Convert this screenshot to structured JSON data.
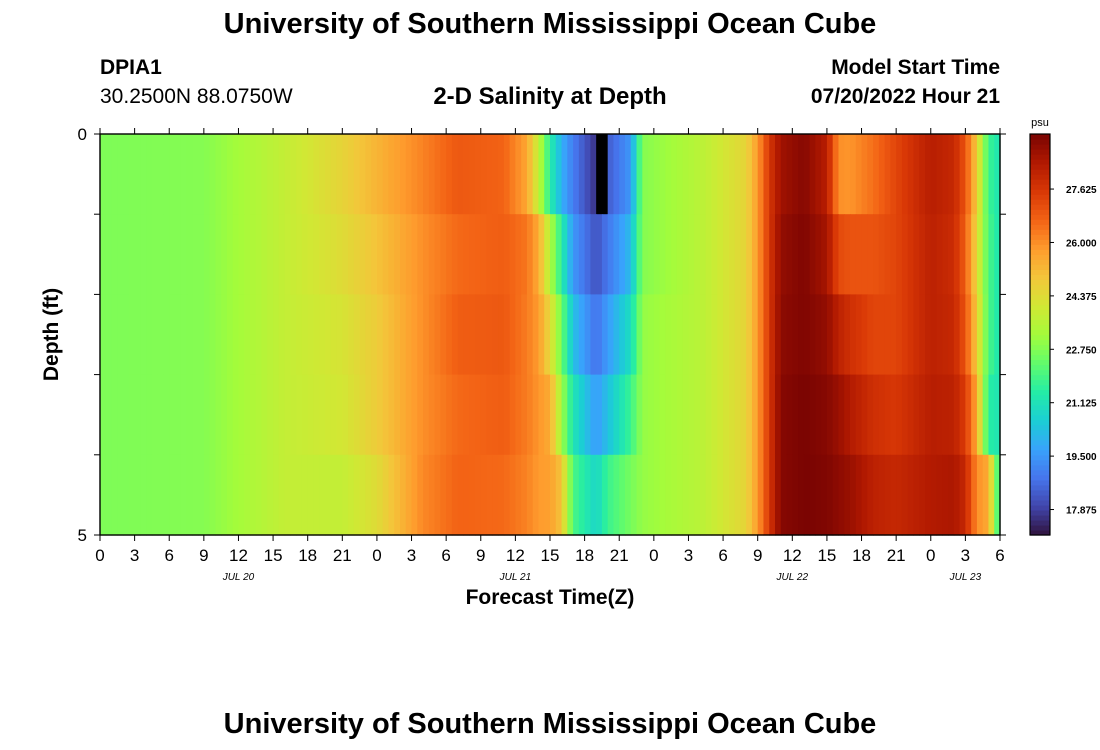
{
  "header": {
    "title": "University of Southern Mississippi Ocean Cube",
    "station": "DPIA1",
    "coords": "30.2500N  88.0750W",
    "subtitle": "2-D Salinity at Depth",
    "model_start_label": "Model Start Time",
    "model_start_value": "07/20/2022 Hour 21"
  },
  "footer": {
    "title": "University of Southern Mississippi Ocean Cube"
  },
  "chart_data": {
    "type": "heatmap",
    "title": "2-D Salinity at Depth",
    "xlabel": "Forecast Time(Z)",
    "ylabel": "Depth (ft)",
    "x_hours": {
      "start": 0,
      "end": 78,
      "step": 1
    },
    "x_tick_labels": [
      "0",
      "3",
      "6",
      "9",
      "12",
      "15",
      "18",
      "21",
      "0",
      "3",
      "6",
      "9",
      "12",
      "15",
      "18",
      "21",
      "0",
      "3",
      "6",
      "9",
      "12",
      "15",
      "18",
      "21",
      "0",
      "3",
      "6"
    ],
    "date_labels": [
      {
        "label": "JUL 20",
        "hour": 12
      },
      {
        "label": "JUL 21",
        "hour": 36
      },
      {
        "label": "JUL 22",
        "hour": 60
      },
      {
        "label": "JUL 23",
        "hour": 75
      }
    ],
    "y_tick_labels": [
      "0",
      "5"
    ],
    "ylim": [
      5,
      0
    ],
    "depth_layers": 5,
    "colorbar": {
      "unit": "psu",
      "min": 17.1,
      "max": 29.3,
      "tick_values": [
        27.625,
        26.0,
        24.375,
        22.75,
        21.125,
        19.5,
        17.875
      ],
      "tick_labels": [
        "27.625",
        "26.000",
        "24.375",
        "22.750",
        "21.125",
        "19.500",
        "17.875"
      ],
      "colors": [
        "#30123b",
        "#4145ab",
        "#4675ed",
        "#39a2fc",
        "#1bcfd4",
        "#24eca6",
        "#61fc6c",
        "#a4fc3b",
        "#d1e834",
        "#f3c63a",
        "#fe9b2d",
        "#f36315",
        "#d93806",
        "#b11901",
        "#7a0402"
      ]
    },
    "profile_note": "salinity psu by forecast hour (rows: depth layers 0-1,1-2,2-3,3-4,4-5 ft)",
    "profile_anchors": [
      {
        "hour": 0,
        "values": [
          22.7,
          22.7,
          22.7,
          22.7,
          22.7
        ]
      },
      {
        "hour": 9,
        "values": [
          22.8,
          22.8,
          22.8,
          22.8,
          22.8
        ]
      },
      {
        "hour": 16,
        "values": [
          23.8,
          23.8,
          23.8,
          23.8,
          23.8
        ]
      },
      {
        "hour": 21,
        "values": [
          24.6,
          24.4,
          24.2,
          24.1,
          23.8
        ]
      },
      {
        "hour": 24,
        "values": [
          25.3,
          25.0,
          24.8,
          24.8,
          24.4
        ]
      },
      {
        "hour": 28,
        "values": [
          26.2,
          26.0,
          26.0,
          26.0,
          26.1
        ]
      },
      {
        "hour": 31,
        "values": [
          26.9,
          26.6,
          26.8,
          26.6,
          26.7
        ]
      },
      {
        "hour": 35,
        "values": [
          26.7,
          26.8,
          26.9,
          26.8,
          26.6
        ]
      },
      {
        "hour": 37,
        "values": [
          25.6,
          26.4,
          26.3,
          26.3,
          26.2
        ]
      },
      {
        "hour": 38,
        "values": [
          23.8,
          25.5,
          25.8,
          25.9,
          25.8
        ]
      },
      {
        "hour": 39,
        "values": [
          21.5,
          23.5,
          24.5,
          25.5,
          25.7
        ]
      },
      {
        "hour": 40,
        "values": [
          20.0,
          21.5,
          22.5,
          23.2,
          25.0
        ]
      },
      {
        "hour": 41,
        "values": [
          19.0,
          19.5,
          20.3,
          21.2,
          22.0
        ]
      },
      {
        "hour": 43,
        "values": [
          17.6,
          18.2,
          18.8,
          19.6,
          20.8
        ]
      },
      {
        "hour": 44,
        "values": [
          18.4,
          18.9,
          19.6,
          20.3,
          21.8
        ]
      },
      {
        "hour": 46,
        "values": [
          19.5,
          20.2,
          21.0,
          21.8,
          22.6
        ]
      },
      {
        "hour": 47,
        "values": [
          22.8,
          22.8,
          23.0,
          23.0,
          23.0
        ]
      },
      {
        "hour": 52,
        "values": [
          23.6,
          23.6,
          23.6,
          23.6,
          23.6
        ]
      },
      {
        "hour": 56,
        "values": [
          24.6,
          24.6,
          24.6,
          24.6,
          24.6
        ]
      },
      {
        "hour": 57,
        "values": [
          25.8,
          25.8,
          25.8,
          25.8,
          25.8
        ]
      },
      {
        "hour": 58,
        "values": [
          27.6,
          27.6,
          27.6,
          27.6,
          27.6
        ]
      },
      {
        "hour": 59,
        "values": [
          28.7,
          28.9,
          29.0,
          29.1,
          29.1
        ]
      },
      {
        "hour": 61,
        "values": [
          29.1,
          29.2,
          29.2,
          29.3,
          29.3
        ]
      },
      {
        "hour": 63,
        "values": [
          28.3,
          28.6,
          28.9,
          29.1,
          29.2
        ]
      },
      {
        "hour": 64,
        "values": [
          26.0,
          27.2,
          28.2,
          28.8,
          29.0
        ]
      },
      {
        "hour": 65,
        "values": [
          25.9,
          27.0,
          27.8,
          28.4,
          28.8
        ]
      },
      {
        "hour": 67,
        "values": [
          26.5,
          27.0,
          27.3,
          27.8,
          28.2
        ]
      },
      {
        "hour": 69,
        "values": [
          27.3,
          27.3,
          27.3,
          27.6,
          28.0
        ]
      },
      {
        "hour": 72,
        "values": [
          28.3,
          28.2,
          28.2,
          28.3,
          28.4
        ]
      },
      {
        "hour": 74,
        "values": [
          28.0,
          27.9,
          28.0,
          28.2,
          28.5
        ]
      },
      {
        "hour": 75,
        "values": [
          27.0,
          26.8,
          27.0,
          27.5,
          28.0
        ]
      },
      {
        "hour": 76,
        "values": [
          24.8,
          24.5,
          24.8,
          25.5,
          26.0
        ]
      },
      {
        "hour": 77,
        "values": [
          21.8,
          22.0,
          22.0,
          21.5,
          25.5
        ]
      },
      {
        "hour": 78,
        "values": [
          21.2,
          21.2,
          21.2,
          21.2,
          21.2
        ]
      }
    ],
    "blackout": {
      "hour": 43,
      "layer": 0
    }
  }
}
